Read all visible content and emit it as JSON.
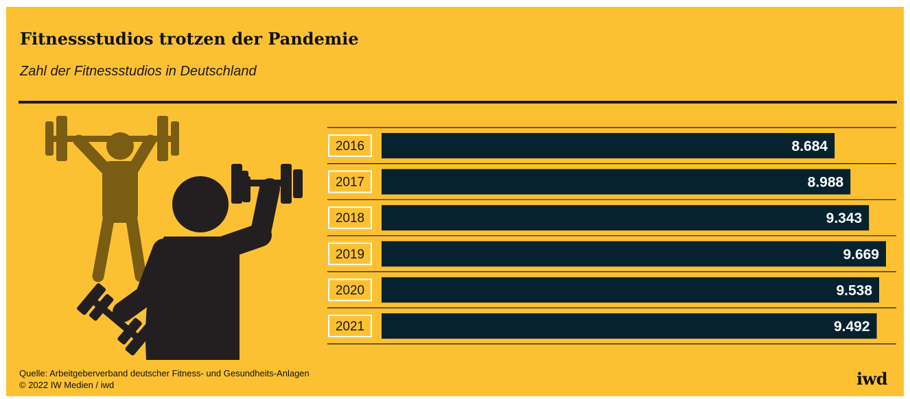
{
  "header": {
    "title": "Fitnessstudios trotzen der Pandemie",
    "subtitle": "Zahl der Fitnessstudios in Deutschland"
  },
  "footer": {
    "source": "Quelle: Arbeitgeberverband deutscher Fitness- und Gesundheits-Anlagen",
    "copyright": "© 2022 IW Medien / iwd",
    "logo": "iwd"
  },
  "colors": {
    "background": "#fcc133",
    "bar": "#06222e",
    "bar_label": "#ffffff",
    "figure_front": "#231f20",
    "figure_back": "#7a5c12",
    "year_box_border": "#ffffff"
  },
  "icons": [
    "weightlifter-icon",
    "dumbbell-athlete-icon"
  ],
  "chart_data": {
    "type": "bar",
    "orientation": "horizontal",
    "categories": [
      "2016",
      "2017",
      "2018",
      "2019",
      "2020",
      "2021"
    ],
    "values": [
      8684,
      8988,
      9343,
      9669,
      9538,
      9492
    ],
    "value_labels": [
      "8.684",
      "8.988",
      "9.343",
      "9.669",
      "9.538",
      "9.492"
    ],
    "title": "Fitnessstudios trotzen der Pandemie",
    "subtitle": "Zahl der Fitnessstudios in Deutschland",
    "xlabel": "",
    "ylabel": "",
    "xlim": [
      0,
      9669
    ],
    "grid": false,
    "legend": "none"
  }
}
